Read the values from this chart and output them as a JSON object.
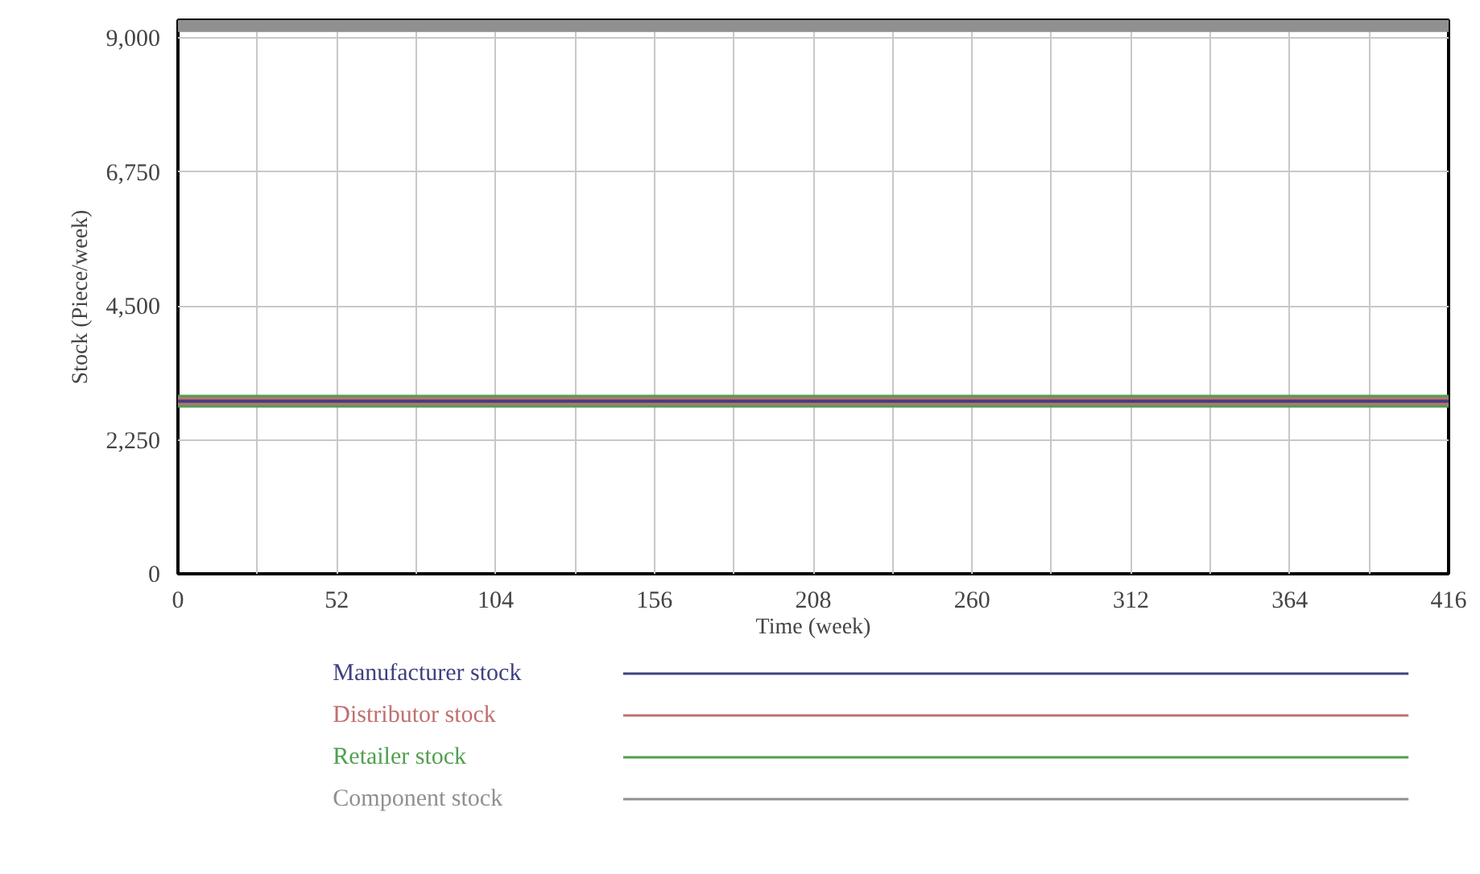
{
  "chart_data": {
    "type": "line",
    "xlabel": "Time (week)",
    "ylabel": "Stock (Piece/week)",
    "x": [
      0,
      416
    ],
    "series": [
      {
        "name": "Manufacturer stock",
        "color": "#404080",
        "values": [
          2900,
          2900
        ]
      },
      {
        "name": "Distributor stock",
        "color": "#c07070",
        "values": [
          2900,
          2900
        ]
      },
      {
        "name": "Retailer stock",
        "color": "#50a050",
        "values": [
          2900,
          2900
        ]
      },
      {
        "name": "Component stock",
        "color": "#909090",
        "values": [
          9250,
          9250
        ]
      }
    ],
    "xlim": [
      0,
      416
    ],
    "ylim": [
      0,
      9300
    ],
    "xticks": [
      0,
      {
        "value": 26,
        "label": null
      },
      52,
      {
        "value": 78,
        "label": null
      },
      104,
      {
        "value": 130,
        "label": null
      },
      156,
      {
        "value": 182,
        "label": null
      },
      208,
      {
        "value": 234,
        "label": null
      },
      260,
      {
        "value": 286,
        "label": null
      },
      312,
      {
        "value": 338,
        "label": null
      },
      364,
      {
        "value": 390,
        "label": null
      },
      416
    ],
    "yticks": [
      0,
      {
        "value": 2250,
        "label": "2,250"
      },
      {
        "value": 4500,
        "label": "4,500"
      },
      {
        "value": 6750,
        "label": "6,750"
      },
      {
        "value": 9000,
        "label": "9,000"
      }
    ],
    "grid": true,
    "legend": "bottom",
    "line_style": "solid",
    "marker": "none"
  }
}
